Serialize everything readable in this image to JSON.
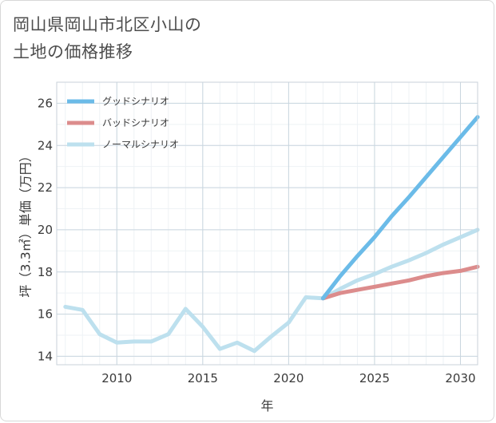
{
  "title": {
    "line1": "岡山県岡山市北区小山の",
    "line2": "土地の価格推移"
  },
  "chart_data": {
    "type": "line",
    "xlabel": "年",
    "ylabel": "坪（3.3㎡）単価（万円）",
    "xlim": [
      2006.5,
      2031
    ],
    "ylim": [
      13.6,
      27
    ],
    "xticks": [
      2010,
      2015,
      2020,
      2025,
      2030
    ],
    "yticks": [
      14,
      16,
      18,
      20,
      22,
      24,
      26
    ],
    "grid": true,
    "legend_position": "top-left",
    "series": [
      {
        "name": "グッドシナリオ",
        "color": "#6bbbe8",
        "x": [
          2022,
          2023,
          2024,
          2025,
          2026,
          2027,
          2028,
          2029,
          2030,
          2031
        ],
        "y": [
          16.75,
          17.8,
          18.75,
          19.65,
          20.65,
          21.55,
          22.5,
          23.45,
          24.4,
          25.35
        ]
      },
      {
        "name": "バッドシナリオ",
        "color": "#dc8c8c",
        "x": [
          2022,
          2023,
          2024,
          2025,
          2026,
          2027,
          2028,
          2029,
          2030,
          2031
        ],
        "y": [
          16.75,
          17.0,
          17.15,
          17.3,
          17.45,
          17.6,
          17.8,
          17.95,
          18.05,
          18.25
        ]
      },
      {
        "name": "ノーマルシナリオ",
        "color": "#bde0ee",
        "x": [
          2007,
          2008,
          2009,
          2010,
          2011,
          2012,
          2013,
          2014,
          2015,
          2016,
          2017,
          2018,
          2019,
          2020,
          2021,
          2022,
          2023,
          2024,
          2025,
          2026,
          2027,
          2028,
          2029,
          2030,
          2031
        ],
        "y": [
          16.35,
          16.2,
          15.05,
          14.65,
          14.7,
          14.7,
          15.05,
          16.25,
          15.4,
          14.35,
          14.65,
          14.25,
          14.95,
          15.6,
          16.8,
          16.75,
          17.2,
          17.6,
          17.9,
          18.25,
          18.55,
          18.9,
          19.3,
          19.65,
          20.0
        ]
      }
    ]
  }
}
